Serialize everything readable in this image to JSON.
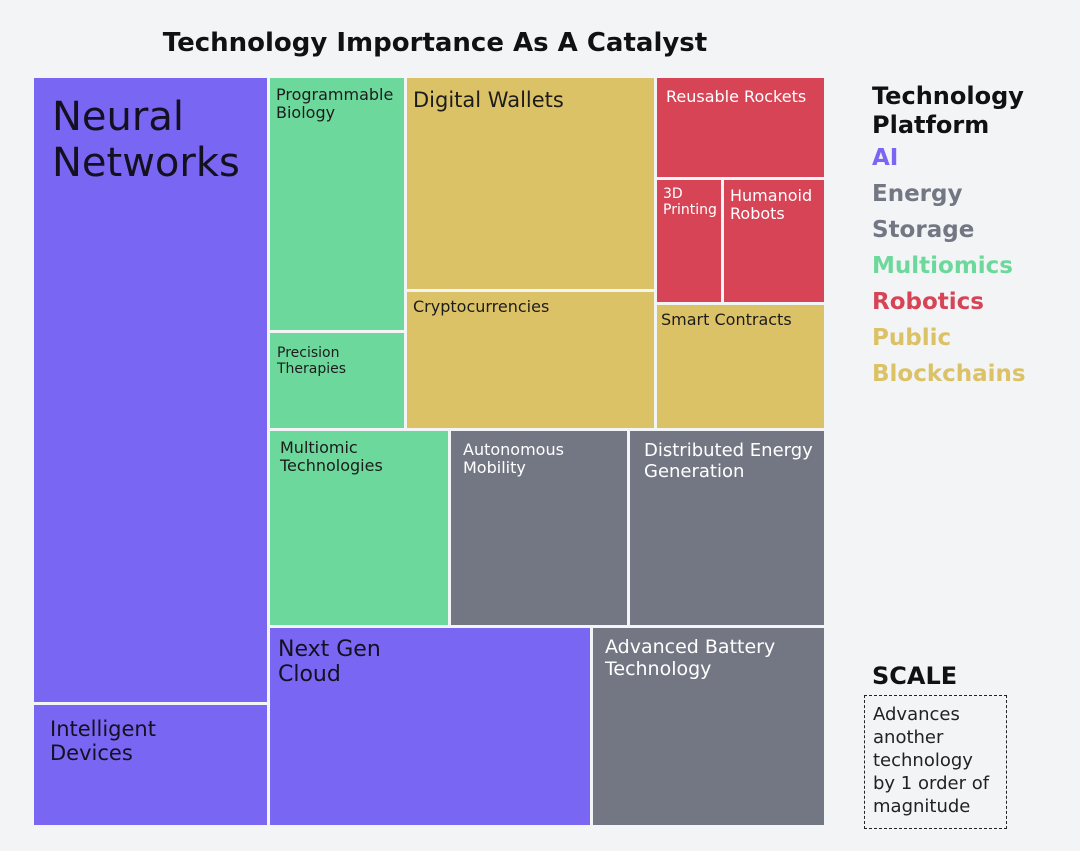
{
  "chart_data": {
    "type": "treemap",
    "title": "Technology Importance As A Catalyst",
    "legend": {
      "title": "Technology\nPlatform",
      "placement": "right",
      "items": [
        {
          "name": "AI",
          "color": "#7966f2"
        },
        {
          "name": "Energy",
          "color": "#737783"
        },
        {
          "name": "Storage",
          "color": "#737783"
        },
        {
          "name": "Multiomics",
          "color": "#6dd89b"
        },
        {
          "name": "Robotics",
          "color": "#d64456"
        },
        {
          "name": "Public",
          "color": "#dcc266"
        },
        {
          "name": "Blockchains",
          "color": "#dcc266"
        }
      ]
    },
    "nodes": [
      {
        "label": "Neural\nNetworks",
        "platform": "AI"
      },
      {
        "label": "Intelligent\nDevices",
        "platform": "AI"
      },
      {
        "label": "Programmable\nBiology",
        "platform": "Multiomics"
      },
      {
        "label": "Precision\nTherapies",
        "platform": "Multiomics"
      },
      {
        "label": "Digital Wallets",
        "platform": "Public Blockchains"
      },
      {
        "label": "Cryptocurrencies",
        "platform": "Public Blockchains"
      },
      {
        "label": "Reusable Rockets",
        "platform": "Robotics"
      },
      {
        "label": "3D\nPrinting",
        "platform": "Robotics"
      },
      {
        "label": "Humanoid\nRobots",
        "platform": "Robotics"
      },
      {
        "label": "Smart Contracts",
        "platform": "Public Blockchains"
      },
      {
        "label": "Multiomic\nTechnologies",
        "platform": "Multiomics"
      },
      {
        "label": "Autonomous\nMobility",
        "platform": "Energy Storage"
      },
      {
        "label": "Distributed Energy\nGeneration",
        "platform": "Energy Storage"
      },
      {
        "label": "Next Gen\nCloud",
        "platform": "AI"
      },
      {
        "label": "Advanced Battery\nTechnology",
        "platform": "Energy Storage"
      }
    ]
  },
  "scale": {
    "title": "SCALE",
    "text": "Advances another technology by 1 order of magnitude"
  }
}
